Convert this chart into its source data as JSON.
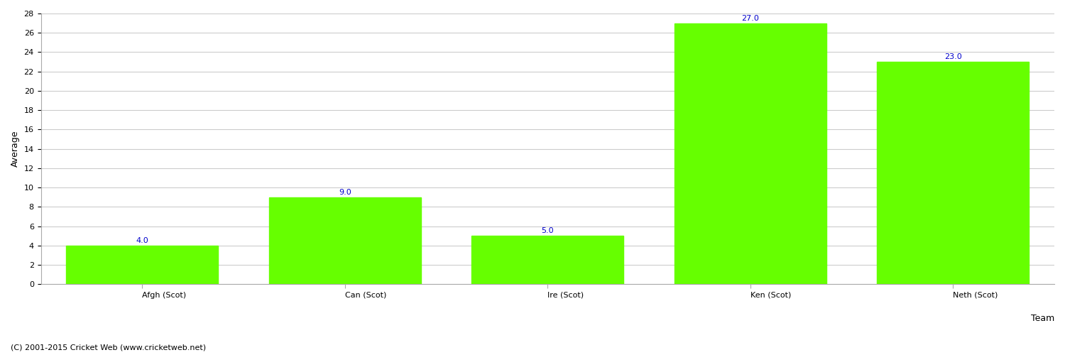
{
  "categories": [
    "Afgh (Scot)",
    "Can (Scot)",
    "Ire (Scot)",
    "Ken (Scot)",
    "Neth (Scot)"
  ],
  "values": [
    4.0,
    9.0,
    5.0,
    27.0,
    23.0
  ],
  "bar_color": "#66ff00",
  "bar_edge_color": "#66ff00",
  "label_color": "#0000cc",
  "ylabel": "Average",
  "xlabel": "Team",
  "ylim": [
    0,
    28
  ],
  "yticks": [
    0,
    2,
    4,
    6,
    8,
    10,
    12,
    14,
    16,
    18,
    20,
    22,
    24,
    26,
    28
  ],
  "grid_color": "#cccccc",
  "background_color": "#ffffff",
  "label_fontsize": 8,
  "axis_label_fontsize": 9,
  "tick_fontsize": 8,
  "footer_text": "(C) 2001-2015 Cricket Web (www.cricketweb.net)",
  "footer_fontsize": 8
}
